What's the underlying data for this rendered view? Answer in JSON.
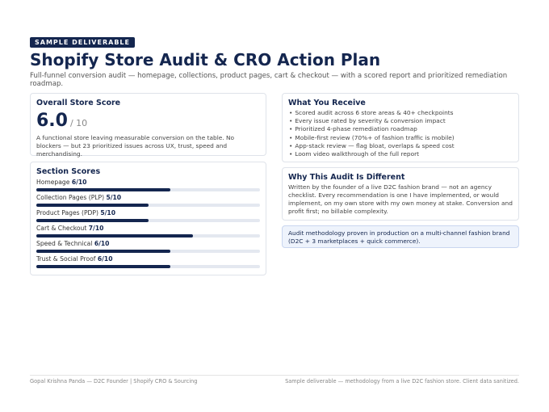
{
  "header": {
    "badge": "SAMPLE DELIVERABLE",
    "title": "Shopify Store Audit & CRO Action Plan",
    "subtitle": "Full-funnel conversion audit — homepage, collections, product pages, cart & checkout — with a scored report and prioritized remediation roadmap."
  },
  "overall": {
    "heading": "Overall Store Score",
    "score": "6.0",
    "out_of": "/ 10",
    "summary": "A functional store leaving measurable conversion on the table. No blockers — but 23 prioritized issues across UX, trust, speed and merchandising."
  },
  "section_scores": {
    "heading": "Section Scores",
    "items": [
      {
        "name": "Homepage",
        "score_label": "6/10",
        "score": 6,
        "max": 10
      },
      {
        "name": "Collection Pages (PLP)",
        "score_label": "5/10",
        "score": 5,
        "max": 10
      },
      {
        "name": "Product Pages (PDP)",
        "score_label": "5/10",
        "score": 5,
        "max": 10
      },
      {
        "name": "Cart & Checkout",
        "score_label": "7/10",
        "score": 7,
        "max": 10
      },
      {
        "name": "Speed & Technical",
        "score_label": "6/10",
        "score": 6,
        "max": 10
      },
      {
        "name": "Trust & Social Proof",
        "score_label": "6/10",
        "score": 6,
        "max": 10
      }
    ]
  },
  "receive": {
    "heading": "What You Receive",
    "items": [
      "Scored audit across 6 store areas & 40+ checkpoints",
      "Every issue rated by severity & conversion impact",
      "Prioritized 4-phase remediation roadmap",
      "Mobile-first review (70%+ of fashion traffic is mobile)",
      "App-stack review — flag bloat, overlaps & speed cost",
      "Loom video walkthrough of the full report"
    ]
  },
  "different": {
    "heading": "Why This Audit Is Different",
    "text": "Written by the founder of a live D2C fashion brand — not an agency checklist. Every recommendation is one I have implemented, or would implement, on my own store with my own money at stake. Conversion and profit first; no billable complexity."
  },
  "note": "Audit methodology proven in production on a multi-channel fashion brand (D2C + 3 marketplaces + quick commerce).",
  "footer": {
    "left": "Gopal Krishna Panda — D2C Founder | Shopify CRO & Sourcing",
    "right": "Sample deliverable — methodology from a live D2C fashion store. Client data sanitized."
  }
}
